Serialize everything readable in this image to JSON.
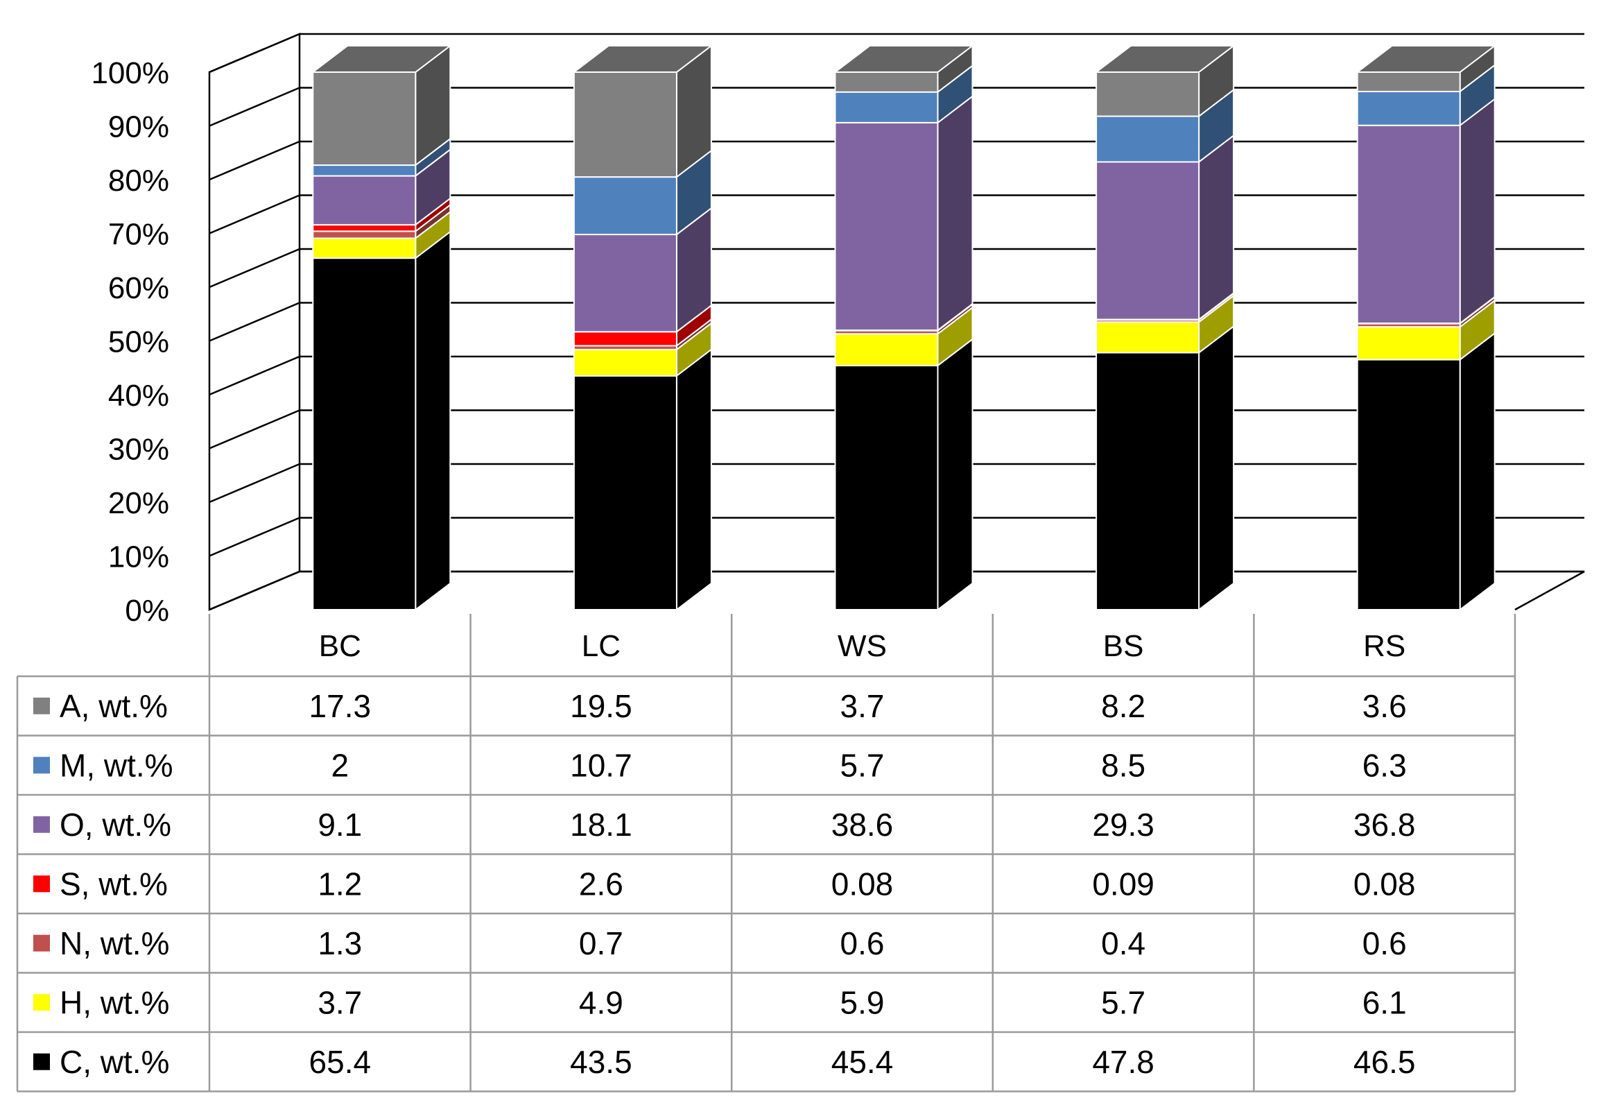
{
  "chart_data": {
    "type": "bar",
    "subtype": "stacked-100-percent-3d-with-data-table",
    "categories": [
      "BC",
      "LC",
      "WS",
      "BS",
      "RS"
    ],
    "series": [
      {
        "name": "C, wt.%",
        "color": "#000000",
        "values": [
          65.4,
          43.5,
          45.4,
          47.8,
          46.5
        ],
        "labels": [
          "65.4",
          "43.5",
          "45.4",
          "47.8",
          "46.5"
        ]
      },
      {
        "name": "H, wt.%",
        "color": "#FFFF00",
        "values": [
          3.7,
          4.9,
          5.9,
          5.7,
          6.1
        ],
        "labels": [
          "3.7",
          "4.9",
          "5.9",
          "5.7",
          "6.1"
        ]
      },
      {
        "name": "N, wt.%",
        "color": "#C0504D",
        "values": [
          1.3,
          0.7,
          0.6,
          0.4,
          0.6
        ],
        "labels": [
          "1.3",
          "0.7",
          "0.6",
          "0.4",
          "0.6"
        ]
      },
      {
        "name": "S, wt.%",
        "color": "#FF0000",
        "values": [
          1.2,
          2.6,
          0.08,
          0.09,
          0.08
        ],
        "labels": [
          "1.2",
          "2.6",
          "0.08",
          "0.09",
          "0.08"
        ]
      },
      {
        "name": "O, wt.%",
        "color": "#8064A2",
        "values": [
          9.1,
          18.1,
          38.6,
          29.3,
          36.8
        ],
        "labels": [
          "9.1",
          "18.1",
          "38.6",
          "29.3",
          "36.8"
        ]
      },
      {
        "name": "M, wt.%",
        "color": "#4F81BD",
        "values": [
          2,
          10.7,
          5.7,
          8.5,
          6.3
        ],
        "labels": [
          "2",
          "10.7",
          "5.7",
          "8.5",
          "6.3"
        ]
      },
      {
        "name": "A, wt.%",
        "color": "#808080",
        "values": [
          17.3,
          19.5,
          3.7,
          8.2,
          3.6
        ],
        "labels": [
          "17.3",
          "19.5",
          "3.7",
          "8.2",
          "3.6"
        ]
      }
    ],
    "table_row_order": [
      "A, wt.%",
      "M, wt.%",
      "O, wt.%",
      "S, wt.%",
      "N, wt.%",
      "H, wt.%",
      "C, wt.%"
    ],
    "ylim": [
      0,
      100
    ],
    "yticks": [
      "0%",
      "10%",
      "20%",
      "30%",
      "40%",
      "50%",
      "60%",
      "70%",
      "80%",
      "90%",
      "100%"
    ],
    "grid": true,
    "legend": "data-table",
    "title": "",
    "xlabel": "",
    "ylabel": ""
  }
}
